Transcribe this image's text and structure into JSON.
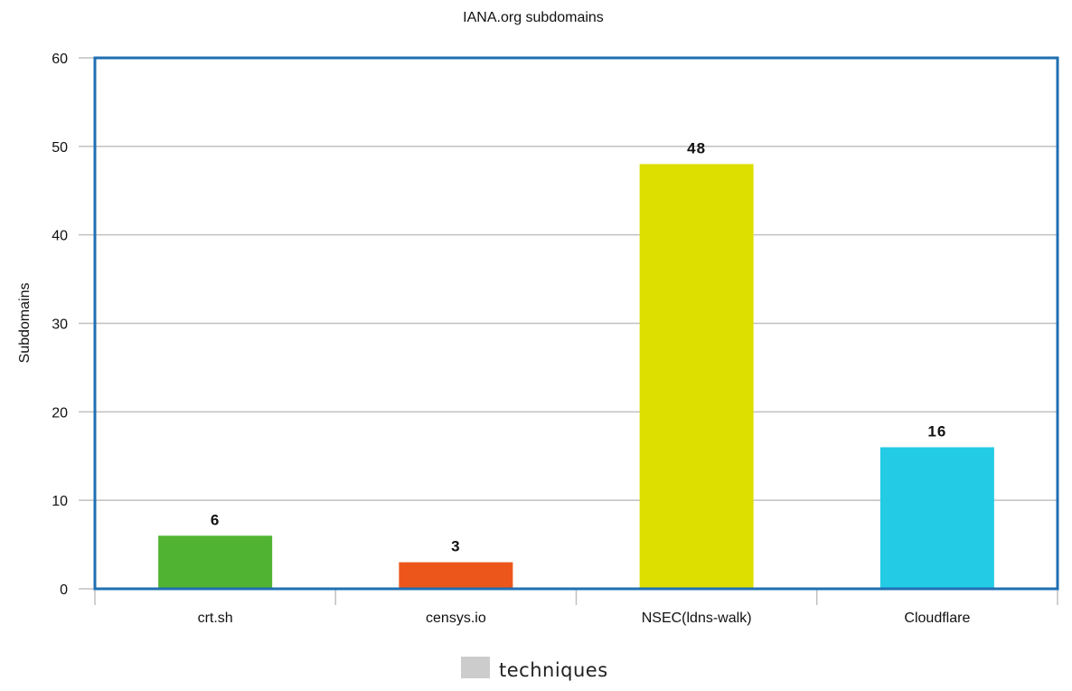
{
  "chart_data": {
    "type": "bar",
    "title": "IANA.org subdomains",
    "xlabel": "",
    "ylabel": "Subdomains",
    "categories": [
      "crt.sh",
      "censys.io",
      "NSEC(ldns-walk)",
      "Cloudflare"
    ],
    "series": [
      {
        "name": "techniques",
        "values": [
          6,
          3,
          48,
          16
        ],
        "colors": [
          "#50b432",
          "#ed561b",
          "#dddf00",
          "#24cbe5"
        ]
      }
    ],
    "ylim": [
      0,
      60
    ],
    "yticks": [
      0,
      10,
      20,
      30,
      40,
      50,
      60
    ],
    "grid": true,
    "legend": "bottom-center",
    "legend_swatch_color": "#cccccc",
    "frame_color": "#1f6fb2",
    "grid_color": "#c0c0c0"
  }
}
